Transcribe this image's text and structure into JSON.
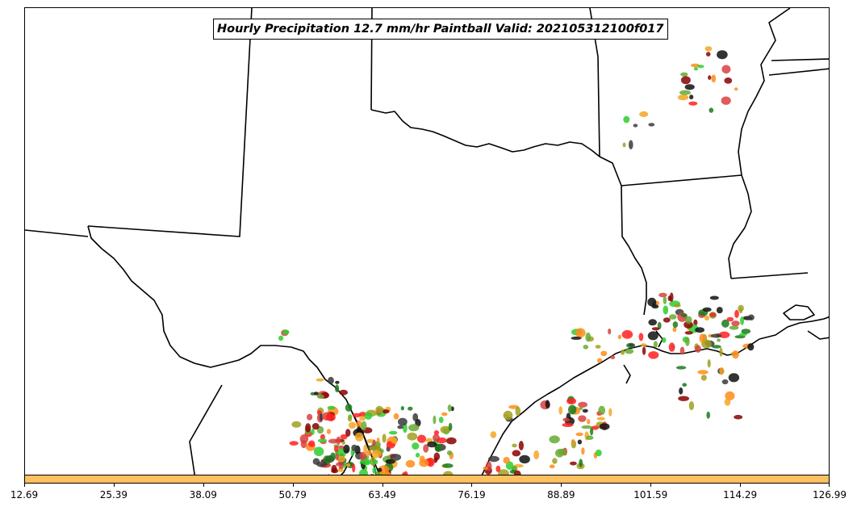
{
  "title": "Hourly Precipitation 12.7 mm/hr Paintball Valid: 202105312100f017",
  "colorbar": {
    "fill_color": "#ffc060",
    "ticks": [
      "12.69",
      "25.39",
      "38.09",
      "50.79",
      "63.49",
      "76.19",
      "88.89",
      "101.59",
      "114.29",
      "126.99"
    ]
  },
  "member_colors": [
    "#ff2020",
    "#ff8c1a",
    "#f5a623",
    "#1a7a1a",
    "#2ecc2e",
    "#8b0000",
    "#111111",
    "#a0a020",
    "#d94040",
    "#3a3a3a",
    "#66aa33"
  ]
}
